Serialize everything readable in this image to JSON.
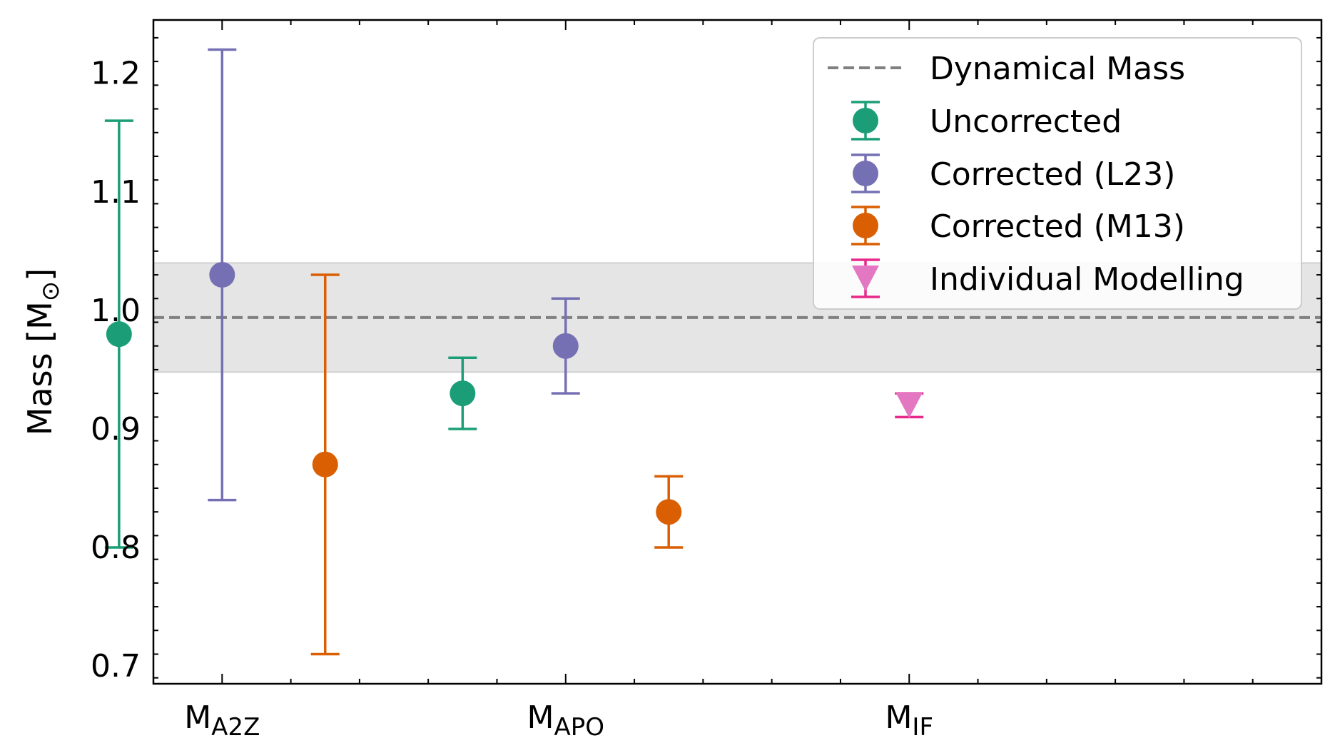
{
  "chart_data": {
    "type": "scatter",
    "title": "",
    "ylabel": {
      "main": "Mass [M",
      "sub": "⊙",
      "close": "]"
    },
    "ylim": [
      0.685,
      1.245
    ],
    "yticks": [
      "0.7",
      "0.8",
      "0.9",
      "1.0",
      "1.1",
      "1.2"
    ],
    "categories": [
      {
        "main": "M",
        "sub": "A2Z"
      },
      {
        "main": "M",
        "sub": "APO"
      },
      {
        "main": "M",
        "sub": "IF"
      }
    ],
    "dynamical_mass": {
      "label": "Dynamical Mass",
      "value": 0.994,
      "band": [
        0.948,
        1.04
      ],
      "color": "#808080"
    },
    "series": [
      {
        "name": "Uncorrected",
        "color": "#1b9e77",
        "marker": "circle",
        "points": [
          {
            "category": 0,
            "value": 0.98,
            "err_low": 0.8,
            "err_high": 1.16
          },
          {
            "category": 1,
            "value": 0.93,
            "err_low": 0.9,
            "err_high": 0.96
          }
        ]
      },
      {
        "name": "Corrected (L23)",
        "color": "#7570b3",
        "marker": "circle",
        "points": [
          {
            "category": 0,
            "value": 1.03,
            "err_low": 0.84,
            "err_high": 1.22
          },
          {
            "category": 1,
            "value": 0.97,
            "err_low": 0.93,
            "err_high": 1.01
          }
        ]
      },
      {
        "name": "Corrected (M13)",
        "color": "#d95f02",
        "marker": "circle",
        "points": [
          {
            "category": 0,
            "value": 0.87,
            "err_low": 0.71,
            "err_high": 1.03
          },
          {
            "category": 1,
            "value": 0.83,
            "err_low": 0.8,
            "err_high": 0.86
          }
        ]
      },
      {
        "name": "Individual Modelling",
        "color": "#e7298a",
        "fill": "#e377c2",
        "marker": "triangle-down",
        "points": [
          {
            "category": 2,
            "value": 0.92,
            "err_low": 0.91,
            "err_high": 0.93
          }
        ]
      }
    ],
    "legend_position": "top-right"
  }
}
